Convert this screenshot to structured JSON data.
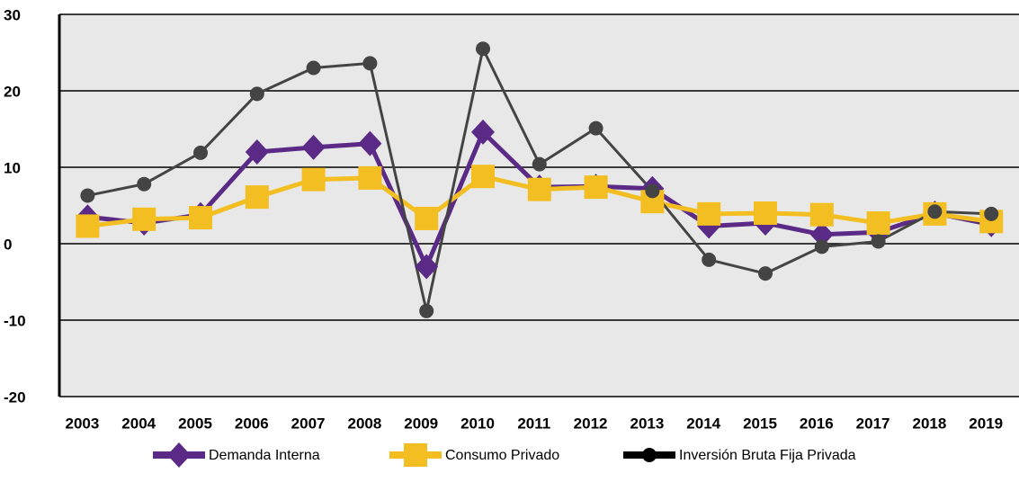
{
  "chart_data": {
    "type": "line",
    "categories": [
      "2003",
      "2004",
      "2005",
      "2006",
      "2007",
      "2008",
      "2009",
      "2010",
      "2011",
      "2012",
      "2013",
      "2014",
      "2015",
      "2016",
      "2017",
      "2018",
      "2019"
    ],
    "series": [
      {
        "name": "Demanda Interna",
        "color": "#5b2a86",
        "marker": "diamond",
        "values": [
          3.5,
          2.7,
          3.8,
          12.0,
          12.6,
          13.1,
          -3.0,
          14.6,
          7.4,
          7.5,
          7.2,
          2.3,
          2.7,
          1.2,
          1.5,
          4.0,
          2.5
        ]
      },
      {
        "name": "Consumo Privado",
        "color": "#f2be22",
        "marker": "square",
        "values": [
          2.3,
          3.2,
          3.4,
          6.1,
          8.4,
          8.6,
          3.3,
          8.8,
          7.1,
          7.4,
          5.5,
          3.9,
          4.0,
          3.8,
          2.7,
          3.9,
          2.9
        ]
      },
      {
        "name": "Inversión Bruta Fija Privada",
        "color": "#444444",
        "marker": "circle",
        "values": [
          6.3,
          7.8,
          11.9,
          19.6,
          23.0,
          23.6,
          -8.8,
          25.5,
          10.4,
          15.1,
          6.9,
          -2.1,
          -3.9,
          -0.4,
          0.3,
          4.2,
          3.9
        ]
      }
    ],
    "ylim": [
      -20,
      30
    ],
    "yticks": [
      30,
      20,
      10,
      0,
      -10,
      -20
    ],
    "grid": true,
    "legend": "bottom"
  }
}
